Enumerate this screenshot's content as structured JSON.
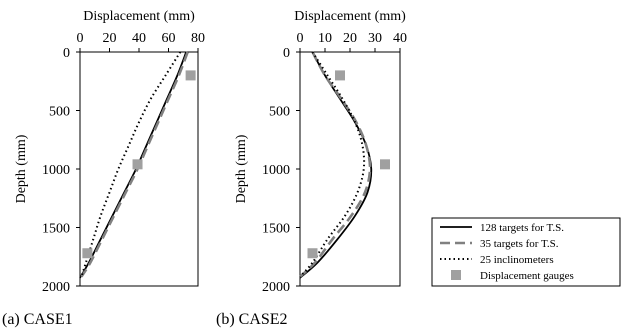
{
  "chart_data": [
    {
      "type": "line",
      "caption": "(a) CASE1",
      "xlabel": "Displacement (mm)",
      "ylabel": "Depth (mm)",
      "xlim": [
        0,
        80
      ],
      "ylim": [
        0,
        2000
      ],
      "y_inverted": true,
      "x_axis_position": "top",
      "xticks": [
        0,
        20,
        40,
        60,
        80
      ],
      "yticks": [
        0,
        500,
        1000,
        1500,
        2000
      ],
      "grid": false,
      "series": [
        {
          "name": "128 targets for T.S.",
          "style": "solid",
          "color": "#000000",
          "points": [
            [
              72,
              0
            ],
            [
              66,
              200
            ],
            [
              59,
              400
            ],
            [
              52,
              600
            ],
            [
              45,
              800
            ],
            [
              38,
              1000
            ],
            [
              30,
              1200
            ],
            [
              22,
              1400
            ],
            [
              14,
              1600
            ],
            [
              6,
              1800
            ],
            [
              0,
              1930
            ]
          ]
        },
        {
          "name": "35 targets for T.S.",
          "style": "dashed",
          "color": "#808080",
          "points": [
            [
              73,
              0
            ],
            [
              67,
              200
            ],
            [
              60,
              400
            ],
            [
              53,
              600
            ],
            [
              46,
              800
            ],
            [
              39,
              1000
            ],
            [
              31,
              1200
            ],
            [
              23,
              1400
            ],
            [
              15,
              1600
            ],
            [
              7,
              1800
            ],
            [
              1,
              1920
            ]
          ]
        },
        {
          "name": "25 inclinometers",
          "style": "dotted",
          "color": "#000000",
          "points": [
            [
              68,
              0
            ],
            [
              58,
              200
            ],
            [
              48,
              400
            ],
            [
              40,
              600
            ],
            [
              33,
              800
            ],
            [
              26,
              1000
            ],
            [
              20,
              1200
            ],
            [
              14,
              1400
            ],
            [
              9,
              1600
            ],
            [
              4,
              1800
            ],
            [
              1,
              1920
            ]
          ]
        },
        {
          "name": "Displacement gauges",
          "style": "markers",
          "color": "#a0a0a0",
          "points": [
            [
              75,
              200
            ],
            [
              39,
              960
            ],
            [
              5,
              1720
            ]
          ]
        }
      ]
    },
    {
      "type": "line",
      "caption": "(b) CASE2",
      "xlabel": "Displacement (mm)",
      "ylabel": "Depth (mm)",
      "xlim": [
        0,
        40
      ],
      "ylim": [
        0,
        2000
      ],
      "y_inverted": true,
      "x_axis_position": "top",
      "xticks": [
        0,
        10,
        20,
        30,
        40
      ],
      "yticks": [
        0,
        500,
        1000,
        1500,
        2000
      ],
      "grid": false,
      "series": [
        {
          "name": "128 targets for T.S.",
          "style": "solid",
          "color": "#000000",
          "points": [
            [
              5,
              0
            ],
            [
              10,
              200
            ],
            [
              16,
              400
            ],
            [
              22,
              600
            ],
            [
              26.5,
              800
            ],
            [
              28.5,
              1000
            ],
            [
              27,
              1200
            ],
            [
              22,
              1400
            ],
            [
              15,
              1600
            ],
            [
              7,
              1800
            ],
            [
              0,
              1930
            ]
          ]
        },
        {
          "name": "35 targets for T.S.",
          "style": "dashed",
          "color": "#808080",
          "points": [
            [
              5,
              0
            ],
            [
              10,
              200
            ],
            [
              16.5,
              400
            ],
            [
              22.5,
              600
            ],
            [
              26.5,
              800
            ],
            [
              28,
              1000
            ],
            [
              26,
              1200
            ],
            [
              20.5,
              1400
            ],
            [
              13,
              1600
            ],
            [
              6,
              1800
            ],
            [
              0,
              1920
            ]
          ]
        },
        {
          "name": "25 inclinometers",
          "style": "dotted",
          "color": "#000000",
          "points": [
            [
              5,
              0
            ],
            [
              11,
              200
            ],
            [
              17,
              400
            ],
            [
              22,
              600
            ],
            [
              25,
              800
            ],
            [
              25.5,
              1000
            ],
            [
              23,
              1200
            ],
            [
              18,
              1400
            ],
            [
              11,
              1600
            ],
            [
              5,
              1800
            ],
            [
              0,
              1920
            ]
          ]
        },
        {
          "name": "Displacement gauges",
          "style": "markers",
          "color": "#a0a0a0",
          "points": [
            [
              16,
              200
            ],
            [
              34,
              960
            ],
            [
              5,
              1720
            ]
          ]
        }
      ]
    }
  ],
  "legend": {
    "placement": "right",
    "entries": [
      {
        "label": "128 targets for T.S.",
        "style": "solid",
        "color": "#000000"
      },
      {
        "label": "35 targets for T.S.",
        "style": "dashed",
        "color": "#808080"
      },
      {
        "label": "25 inclinometers",
        "style": "dotted",
        "color": "#000000"
      },
      {
        "label": "Displacement gauges",
        "style": "marker",
        "color": "#a0a0a0"
      }
    ]
  }
}
